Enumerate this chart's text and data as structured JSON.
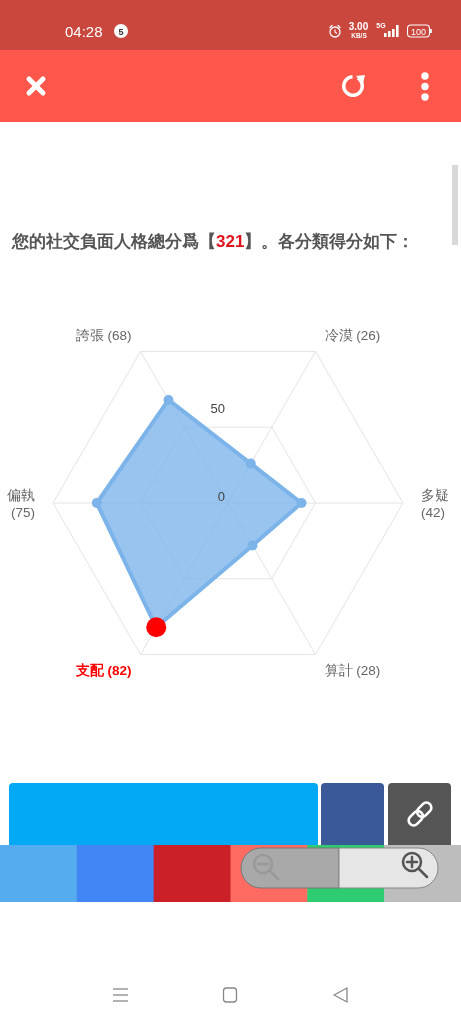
{
  "chart_data": {
    "type": "radar",
    "title": "您的社交負面人格總分爲【321】。各分類得分如下：",
    "categories": [
      "冷漠 (26)",
      "多疑 (42)",
      "算計 (28)",
      "支配 (82)",
      "偏執 (75)",
      "誇張 (68)"
    ],
    "series": [
      {
        "color": "#7cb4ea",
        "values": [
          26,
          42,
          28,
          82,
          75,
          68
        ],
        "colors": [
          "#7cb4ea",
          "#7cb4ea",
          "#7cb4ea",
          "#ff0000",
          "#7cb4ea",
          "#7cb4ea"
        ]
      }
    ],
    "ylim": [
      0,
      100
    ],
    "yticks": [
      0,
      50
    ],
    "grid": true,
    "marker": "circle",
    "annotations": [
      "04:28",
      "5",
      "3.00",
      "KB/S",
      "5G",
      "100"
    ]
  }
}
